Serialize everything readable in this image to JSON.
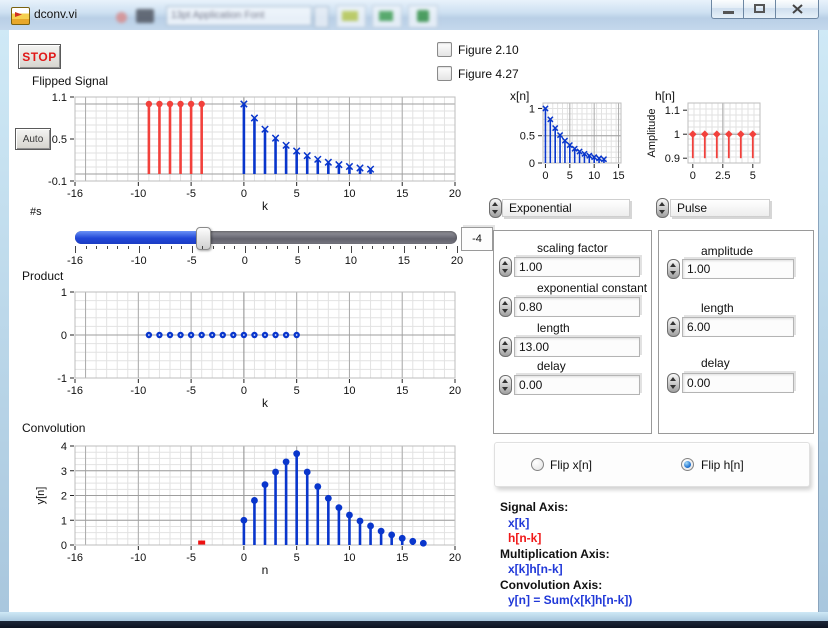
{
  "window": {
    "title": "dconv.vi"
  },
  "titlebar_buttons": {
    "minimize": "minimize",
    "maximize": "maximize",
    "close": "close"
  },
  "buttons": {
    "stop": "STOP",
    "auto": "Auto"
  },
  "checkboxes": [
    {
      "label": "Figure 2.10",
      "checked": false
    },
    {
      "label": "Figure 4.27",
      "checked": false
    }
  ],
  "slider": {
    "label": "#s",
    "value": -4,
    "display_value": "-4",
    "min": -16,
    "max": 20,
    "tick_labels": [
      -16,
      -10,
      -5,
      0,
      5,
      10,
      15,
      20
    ]
  },
  "signal_types": {
    "x_value": "Exponential",
    "h_value": "Pulse"
  },
  "x_controls": {
    "items": [
      {
        "label": "scaling factor",
        "value": "1.00"
      },
      {
        "label": "exponential constant",
        "value": "0.80"
      },
      {
        "label": "length",
        "value": "13.00"
      },
      {
        "label": "delay",
        "value": "0.00"
      }
    ]
  },
  "h_controls": {
    "items": [
      {
        "label": "amplitude",
        "value": "1.00"
      },
      {
        "label": "length",
        "value": "6.00"
      },
      {
        "label": "delay",
        "value": "0.00"
      }
    ]
  },
  "flip": {
    "options": [
      {
        "label": "Flip x[n]",
        "selected": false
      },
      {
        "label": "Flip h[n]",
        "selected": true
      }
    ]
  },
  "legend": {
    "lines": [
      {
        "text": "Signal Axis:",
        "color": "#101010",
        "indent": false
      },
      {
        "text": "x[k]",
        "color": "#2038d8",
        "indent": true
      },
      {
        "text": "h[n-k]",
        "color": "#f01818",
        "indent": true
      },
      {
        "text": "Multiplication Axis:",
        "color": "#101010",
        "indent": false
      },
      {
        "text": "x[k]h[n-k]",
        "color": "#2038d8",
        "indent": true
      },
      {
        "text": "Convolution Axis:",
        "color": "#101010",
        "indent": false
      },
      {
        "text": "y[n] = Sum(x[k]h[n-k])",
        "color": "#2038d8",
        "indent": true
      }
    ]
  },
  "colors": {
    "plot_blue": "#0936cc",
    "plot_red": "#f2413c",
    "marker_red": "#ee1111",
    "slider_blue": "#2248d8"
  },
  "chart_data": [
    {
      "id": "flipped",
      "type": "stem",
      "title": "Flipped Signal",
      "xlabel": "k",
      "ylabel": "",
      "xlim": [
        -16,
        20
      ],
      "ylim": [
        -0.1,
        1.1
      ],
      "xticks": [
        -16,
        -10,
        -5,
        0,
        5,
        10,
        15,
        20
      ],
      "yticks": [
        1.1,
        0.5,
        -0.1
      ],
      "x_minor": 1,
      "y_minor": 0.1,
      "x_major": [
        -15,
        -10,
        -5,
        0,
        5,
        10,
        15,
        20
      ],
      "y_major": [
        0,
        1
      ],
      "series": [
        {
          "name": "h[n-k]",
          "color": "#f2413c",
          "marker": "circle",
          "stem": true,
          "baseline": 0,
          "x": [
            -9,
            -8,
            -7,
            -6,
            -5,
            -4
          ],
          "y": [
            1,
            1,
            1,
            1,
            1,
            1
          ]
        },
        {
          "name": "x[k]",
          "color": "#0936cc",
          "marker": "x",
          "stem": true,
          "baseline": 0,
          "x": [
            0,
            1,
            2,
            3,
            4,
            5,
            6,
            7,
            8,
            9,
            10,
            11,
            12
          ],
          "y": [
            1,
            0.8,
            0.64,
            0.512,
            0.41,
            0.328,
            0.262,
            0.21,
            0.168,
            0.134,
            0.107,
            0.086,
            0.069
          ]
        }
      ]
    },
    {
      "id": "product",
      "type": "stem",
      "title": "Product",
      "xlabel": "k",
      "ylabel": "",
      "xlim": [
        -16,
        20
      ],
      "ylim": [
        -1,
        1
      ],
      "xticks": [
        -16,
        -10,
        -5,
        0,
        5,
        10,
        15,
        20
      ],
      "yticks": [
        1,
        0,
        -1
      ],
      "x_minor": 1,
      "y_minor": 0.2,
      "x_major": [
        -15,
        -10,
        -5,
        0,
        5,
        10,
        15,
        20
      ],
      "y_major": [
        0
      ],
      "series": [
        {
          "name": "x[k]h[n-k]",
          "color": "#0936cc",
          "marker": "dot",
          "stem": false,
          "baseline": 0,
          "x": [
            -9,
            -8,
            -7,
            -6,
            -5,
            -4,
            -3,
            -2,
            -1,
            0,
            1,
            2,
            3,
            4,
            5
          ],
          "y": [
            0,
            0,
            0,
            0,
            0,
            0,
            0,
            0,
            0,
            0,
            0,
            0,
            0,
            0,
            0
          ]
        }
      ]
    },
    {
      "id": "conv",
      "type": "stem",
      "title": "Convolution",
      "xlabel": "n",
      "ylabel": "y[n]",
      "xlim": [
        -16,
        20
      ],
      "ylim": [
        0,
        4
      ],
      "xticks": [
        -16,
        -10,
        -5,
        0,
        5,
        10,
        15,
        20
      ],
      "yticks": [
        4,
        3,
        2,
        1,
        0
      ],
      "x_minor": 1,
      "y_minor": 0.25,
      "x_major": [
        -15,
        -10,
        -5,
        0,
        5,
        10,
        15,
        20
      ],
      "y_major": [
        1,
        2,
        3
      ],
      "series": [
        {
          "name": "y[n]",
          "color": "#0936cc",
          "marker": "circle",
          "stem": true,
          "baseline": 0,
          "x": [
            0,
            1,
            2,
            3,
            4,
            5,
            6,
            7,
            8,
            9,
            10,
            11,
            12,
            13,
            14,
            15,
            16,
            17
          ],
          "y": [
            1,
            1.8,
            2.44,
            2.95,
            3.36,
            3.69,
            2.95,
            2.36,
            1.89,
            1.51,
            1.21,
            0.97,
            0.77,
            0.56,
            0.41,
            0.27,
            0.15,
            0.07
          ]
        },
        {
          "name": "current-n-marker",
          "color": "#ee1111",
          "marker": "square",
          "stem": false,
          "baseline": 0,
          "x": [
            -4
          ],
          "y": [
            0.1
          ]
        }
      ]
    },
    {
      "id": "xn",
      "type": "stem",
      "title": "x[n]",
      "xlabel": "",
      "ylabel": "",
      "xlim": [
        -0.5,
        15.5
      ],
      "ylim": [
        0,
        1.1
      ],
      "xticks": [
        0,
        5,
        10,
        15
      ],
      "yticks": [
        1,
        0.5,
        0
      ],
      "x_minor": 1,
      "y_minor": 0.1,
      "x_major": [
        5,
        10,
        15
      ],
      "y_major": [
        0.5
      ],
      "series": [
        {
          "name": "x[n]",
          "color": "#0936cc",
          "marker": "x",
          "stem": true,
          "baseline": 0,
          "x": [
            0,
            1,
            2,
            3,
            4,
            5,
            6,
            7,
            8,
            9,
            10,
            11,
            12
          ],
          "y": [
            1,
            0.8,
            0.64,
            0.512,
            0.41,
            0.328,
            0.262,
            0.21,
            0.168,
            0.134,
            0.107,
            0.086,
            0.069
          ]
        }
      ]
    },
    {
      "id": "hn",
      "type": "stem",
      "title": "h[n]",
      "xlabel": "",
      "ylabel": "Amplitude",
      "xlim": [
        -0.4,
        5.6
      ],
      "ylim": [
        0.88,
        1.13
      ],
      "xticks": [
        0,
        2.5,
        5
      ],
      "yticks": [
        1.1,
        1,
        0.9
      ],
      "x_minor": 0.5,
      "y_minor": 0.025,
      "x_major": [
        2.5
      ],
      "y_major": [
        1
      ],
      "series": [
        {
          "name": "h[n]",
          "color": "#f2413c",
          "marker": "diamond",
          "stem": true,
          "baseline": 0.9,
          "x": [
            0,
            1,
            2,
            3,
            4,
            5
          ],
          "y": [
            1,
            1,
            1,
            1,
            1,
            1
          ]
        }
      ]
    }
  ]
}
